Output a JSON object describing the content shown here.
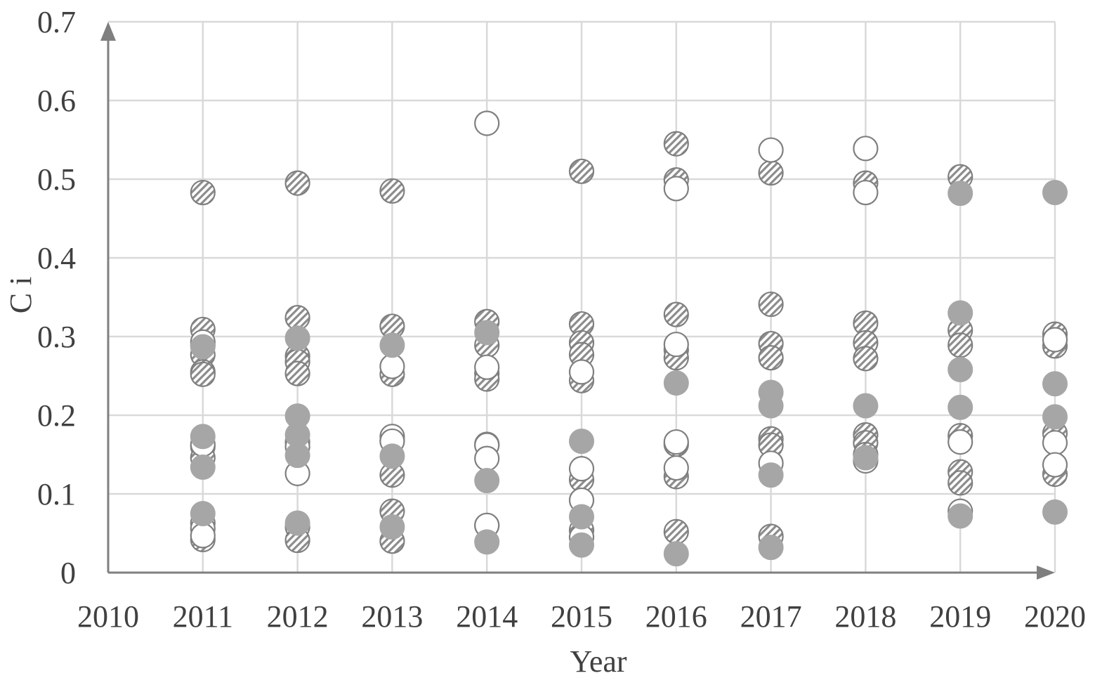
{
  "chart_data": {
    "type": "scatter",
    "xlabel": "Year",
    "ylabel": "C i",
    "xlim": [
      2010,
      2020
    ],
    "ylim": [
      0,
      0.7
    ],
    "x_ticks": [
      "2010",
      "2011",
      "2012",
      "2013",
      "2014",
      "2015",
      "2016",
      "2017",
      "2018",
      "2019",
      "2020"
    ],
    "y_ticks": [
      "0",
      "0.1",
      "0.2",
      "0.3",
      "0.4",
      "0.5",
      "0.6",
      "0.7"
    ],
    "grid": true,
    "legend": "none",
    "colors": {
      "grid": "#d9d9d9",
      "axis": "#7f7f7f",
      "marker_edge": "#7f7f7f",
      "filled": "#a6a6a6",
      "hollow": "#ffffff"
    },
    "series": [
      {
        "marker": "hatched-circle",
        "points": [
          [
            2011,
            0.483
          ],
          [
            2011,
            0.309
          ],
          [
            2011,
            0.289
          ],
          [
            2011,
            0.277
          ],
          [
            2011,
            0.255
          ],
          [
            2011,
            0.252
          ],
          [
            2011,
            0.16
          ],
          [
            2011,
            0.146
          ],
          [
            2011,
            0.063
          ],
          [
            2011,
            0.042
          ],
          [
            2012,
            0.495
          ],
          [
            2012,
            0.324
          ],
          [
            2012,
            0.275
          ],
          [
            2012,
            0.268
          ],
          [
            2012,
            0.253
          ],
          [
            2012,
            0.166
          ],
          [
            2012,
            0.058
          ],
          [
            2012,
            0.041
          ],
          [
            2013,
            0.485
          ],
          [
            2013,
            0.313
          ],
          [
            2013,
            0.252
          ],
          [
            2013,
            0.168
          ],
          [
            2013,
            0.124
          ],
          [
            2013,
            0.078
          ],
          [
            2013,
            0.04
          ],
          [
            2014,
            0.319
          ],
          [
            2014,
            0.289
          ],
          [
            2014,
            0.253
          ],
          [
            2014,
            0.246
          ],
          [
            2014,
            0.163
          ],
          [
            2014,
            0.06
          ],
          [
            2015,
            0.51
          ],
          [
            2015,
            0.316
          ],
          [
            2015,
            0.292
          ],
          [
            2015,
            0.277
          ],
          [
            2015,
            0.244
          ],
          [
            2015,
            0.118
          ],
          [
            2015,
            0.054
          ],
          [
            2016,
            0.545
          ],
          [
            2016,
            0.499
          ],
          [
            2016,
            0.328
          ],
          [
            2016,
            0.283
          ],
          [
            2016,
            0.273
          ],
          [
            2016,
            0.163
          ],
          [
            2016,
            0.122
          ],
          [
            2016,
            0.052
          ],
          [
            2017,
            0.508
          ],
          [
            2017,
            0.341
          ],
          [
            2017,
            0.291
          ],
          [
            2017,
            0.273
          ],
          [
            2017,
            0.17
          ],
          [
            2017,
            0.162
          ],
          [
            2017,
            0.046
          ],
          [
            2018,
            0.495
          ],
          [
            2018,
            0.317
          ],
          [
            2018,
            0.292
          ],
          [
            2018,
            0.272
          ],
          [
            2018,
            0.175
          ],
          [
            2018,
            0.165
          ],
          [
            2018,
            0.15
          ],
          [
            2019,
            0.503
          ],
          [
            2019,
            0.308
          ],
          [
            2019,
            0.289
          ],
          [
            2019,
            0.174
          ],
          [
            2019,
            0.128
          ],
          [
            2019,
            0.114
          ],
          [
            2020,
            0.303
          ],
          [
            2020,
            0.288
          ],
          [
            2020,
            0.177
          ],
          [
            2020,
            0.125
          ]
        ]
      },
      {
        "marker": "hollow-circle",
        "points": [
          [
            2011,
            0.293
          ],
          [
            2011,
            0.163
          ],
          [
            2011,
            0.056
          ],
          [
            2011,
            0.047
          ],
          [
            2012,
            0.126
          ],
          [
            2012,
            0.16
          ],
          [
            2013,
            0.262
          ],
          [
            2013,
            0.173
          ],
          [
            2013,
            0.167
          ],
          [
            2014,
            0.571
          ],
          [
            2014,
            0.261
          ],
          [
            2014,
            0.162
          ],
          [
            2014,
            0.145
          ],
          [
            2014,
            0.06
          ],
          [
            2015,
            0.255
          ],
          [
            2015,
            0.132
          ],
          [
            2015,
            0.092
          ],
          [
            2015,
            0.045
          ],
          [
            2016,
            0.488
          ],
          [
            2016,
            0.29
          ],
          [
            2016,
            0.166
          ],
          [
            2016,
            0.133
          ],
          [
            2017,
            0.537
          ],
          [
            2017,
            0.139
          ],
          [
            2018,
            0.539
          ],
          [
            2018,
            0.483
          ],
          [
            2018,
            0.142
          ],
          [
            2019,
            0.166
          ],
          [
            2019,
            0.078
          ],
          [
            2020,
            0.296
          ],
          [
            2020,
            0.165
          ],
          [
            2020,
            0.137
          ]
        ]
      },
      {
        "marker": "filled-circle",
        "points": [
          [
            2011,
            0.287
          ],
          [
            2011,
            0.173
          ],
          [
            2011,
            0.134
          ],
          [
            2011,
            0.075
          ],
          [
            2012,
            0.298
          ],
          [
            2012,
            0.199
          ],
          [
            2012,
            0.175
          ],
          [
            2012,
            0.149
          ],
          [
            2012,
            0.063
          ],
          [
            2013,
            0.289
          ],
          [
            2013,
            0.148
          ],
          [
            2013,
            0.058
          ],
          [
            2014,
            0.305
          ],
          [
            2014,
            0.117
          ],
          [
            2014,
            0.039
          ],
          [
            2015,
            0.167
          ],
          [
            2015,
            0.071
          ],
          [
            2015,
            0.035
          ],
          [
            2016,
            0.241
          ],
          [
            2016,
            0.024
          ],
          [
            2017,
            0.229
          ],
          [
            2017,
            0.212
          ],
          [
            2017,
            0.124
          ],
          [
            2017,
            0.032
          ],
          [
            2018,
            0.212
          ],
          [
            2018,
            0.146
          ],
          [
            2019,
            0.482
          ],
          [
            2019,
            0.33
          ],
          [
            2019,
            0.258
          ],
          [
            2019,
            0.21
          ],
          [
            2019,
            0.072
          ],
          [
            2020,
            0.483
          ],
          [
            2020,
            0.24
          ],
          [
            2020,
            0.198
          ],
          [
            2020,
            0.077
          ]
        ]
      }
    ]
  }
}
